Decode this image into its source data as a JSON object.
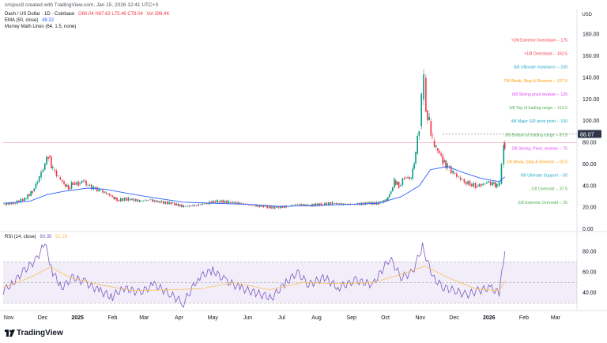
{
  "header": {
    "credit": "crispus9 created with TradingView.com, Jan 15, 2026 12:41 UTC+3"
  },
  "legend": {
    "symbol": "Dash / US Dollar · 1D · Coinbase",
    "ohlc": "O80.04  H87.62  L75.48  C78.04",
    "volume": "Vol 296.4K",
    "ema_label": "EMA (50, close)",
    "ema_value": "48.32",
    "murrey_label": "Murrey Math Lines (64, 1.5, none)",
    "rsi_label": "RSI (14, close)",
    "rsi_value": "80.35",
    "rsi_ma_value": "51.28"
  },
  "currency": "USD",
  "price_tag": "88.07",
  "footer": {
    "brand": "TradingView"
  },
  "colors": {
    "candle_up": "#089981",
    "candle_down": "#f23645",
    "ema": "#2962ff",
    "rsi": "#7e57c2",
    "rsi_ma": "#f7c15b",
    "rsi_band": "#7e57c2"
  },
  "chart_data": [
    {
      "type": "candlestick",
      "title": "Dash / US Dollar · 1D · Coinbase",
      "ylim": [
        0,
        190
      ],
      "y_ticks": [
        "180.00",
        "160.00",
        "140.00",
        "120.00",
        "100.00",
        "80.00",
        "60.00",
        "40.00",
        "20.00",
        "0.00"
      ],
      "x_ticks": [
        "Nov",
        "Dec",
        "2025",
        "Feb",
        "Mar",
        "Apr",
        "May",
        "Jun",
        "Jul",
        "Aug",
        "Sep",
        "Oct",
        "Nov",
        "Dec",
        "2026",
        "Feb",
        "Mar"
      ],
      "x_range": [
        "2024-10-27",
        "2026-03-20"
      ],
      "last_price": 88.07,
      "price_series_close": [
        [
          "2024-10-27",
          23
        ],
        [
          "2024-11-05",
          24
        ],
        [
          "2024-11-15",
          28
        ],
        [
          "2024-11-22",
          35
        ],
        [
          "2024-11-28",
          48
        ],
        [
          "2024-12-03",
          60
        ],
        [
          "2024-12-06",
          68
        ],
        [
          "2024-12-10",
          55
        ],
        [
          "2024-12-15",
          48
        ],
        [
          "2024-12-20",
          42
        ],
        [
          "2024-12-24",
          38
        ],
        [
          "2024-12-28",
          43
        ],
        [
          "2025-01-02",
          42
        ],
        [
          "2025-01-06",
          45
        ],
        [
          "2025-01-10",
          40
        ],
        [
          "2025-01-15",
          38
        ],
        [
          "2025-01-20",
          36
        ],
        [
          "2025-01-25",
          34
        ],
        [
          "2025-02-01",
          30
        ],
        [
          "2025-02-05",
          27
        ],
        [
          "2025-02-15",
          28
        ],
        [
          "2025-02-25",
          26
        ],
        [
          "2025-03-05",
          27
        ],
        [
          "2025-03-15",
          25
        ],
        [
          "2025-03-25",
          24
        ],
        [
          "2025-04-05",
          21
        ],
        [
          "2025-04-15",
          22
        ],
        [
          "2025-04-25",
          24
        ],
        [
          "2025-05-05",
          26
        ],
        [
          "2025-05-15",
          25
        ],
        [
          "2025-05-25",
          24
        ],
        [
          "2025-06-05",
          22
        ],
        [
          "2025-06-15",
          21
        ],
        [
          "2025-06-25",
          20
        ],
        [
          "2025-07-05",
          21
        ],
        [
          "2025-07-15",
          23
        ],
        [
          "2025-07-25",
          22
        ],
        [
          "2025-08-05",
          23
        ],
        [
          "2025-08-15",
          24
        ],
        [
          "2025-08-25",
          23
        ],
        [
          "2025-09-05",
          23
        ],
        [
          "2025-09-15",
          24
        ],
        [
          "2025-09-25",
          24
        ],
        [
          "2025-10-02",
          27
        ],
        [
          "2025-10-06",
          35
        ],
        [
          "2025-10-09",
          45
        ],
        [
          "2025-10-13",
          40
        ],
        [
          "2025-10-18",
          48
        ],
        [
          "2025-10-24",
          47
        ],
        [
          "2025-10-28",
          70
        ],
        [
          "2025-10-31",
          95
        ],
        [
          "2025-11-02",
          120
        ],
        [
          "2025-11-04",
          140
        ],
        [
          "2025-11-06",
          110
        ],
        [
          "2025-11-09",
          100
        ],
        [
          "2025-11-12",
          82
        ],
        [
          "2025-11-15",
          75
        ],
        [
          "2025-11-18",
          70
        ],
        [
          "2025-11-21",
          62
        ],
        [
          "2025-11-25",
          58
        ],
        [
          "2025-11-30",
          52
        ],
        [
          "2025-12-05",
          48
        ],
        [
          "2025-12-10",
          44
        ],
        [
          "2025-12-15",
          42
        ],
        [
          "2025-12-20",
          40
        ],
        [
          "2025-12-25",
          41
        ],
        [
          "2025-12-30",
          43
        ],
        [
          "2026-01-04",
          42
        ],
        [
          "2026-01-08",
          40
        ],
        [
          "2026-01-10",
          42
        ],
        [
          "2026-01-12",
          60
        ],
        [
          "2026-01-14",
          80
        ],
        [
          "2026-01-15",
          78.04
        ]
      ],
      "series": [
        {
          "name": "EMA (50, close)",
          "values": [
            [
              "2024-10-27",
              24
            ],
            [
              "2024-11-20",
              26
            ],
            [
              "2024-12-05",
              32
            ],
            [
              "2024-12-20",
              35
            ],
            [
              "2025-01-10",
              38
            ],
            [
              "2025-01-25",
              37
            ],
            [
              "2025-02-15",
              33
            ],
            [
              "2025-03-10",
              29
            ],
            [
              "2025-04-05",
              25
            ],
            [
              "2025-05-01",
              24
            ],
            [
              "2025-06-01",
              23
            ],
            [
              "2025-07-01",
              21
            ],
            [
              "2025-08-01",
              22
            ],
            [
              "2025-09-01",
              23
            ],
            [
              "2025-09-25",
              24
            ],
            [
              "2025-10-15",
              30
            ],
            [
              "2025-10-31",
              40
            ],
            [
              "2025-11-10",
              55
            ],
            [
              "2025-11-25",
              58
            ],
            [
              "2025-12-10",
              52
            ],
            [
              "2025-12-25",
              47
            ],
            [
              "2026-01-10",
              44
            ],
            [
              "2026-01-15",
              48.32
            ]
          ]
        }
      ],
      "murrey_levels": [
        {
          "label": "+2/8 Extreme Overshoot -- 175",
          "value": 175,
          "color": "#f23645"
        },
        {
          "label": "+1/8 Overshoot -- 162.5",
          "value": 162.5,
          "color": "#f23645"
        },
        {
          "label": "8/8 Ultimate resistance -- 150",
          "value": 150,
          "color": "#22a7c9"
        },
        {
          "label": "7/8 Weak, Stop & Reverse -- 137.5",
          "value": 137.5,
          "color": "#ff9800"
        },
        {
          "label": "6/8 Strong pivot reverse -- 125",
          "value": 125,
          "color": "#e040fb"
        },
        {
          "label": "5/8 Top of trading range -- 112.5",
          "value": 112.5,
          "color": "#4caf50"
        },
        {
          "label": "4/8 Major S/R pivot point -- 100",
          "value": 100,
          "color": "#22a7c9"
        },
        {
          "label": "3/8 Bottom of trading range -- 87.5",
          "value": 87.5,
          "color": "#4caf50"
        },
        {
          "label": "2/8 Strong, Pivot, reverse -- 75",
          "value": 75,
          "color": "#e040fb"
        },
        {
          "label": "1/8 Weak, Stop & Reverse -- 62.5",
          "value": 62.5,
          "color": "#ff9800"
        },
        {
          "label": "0/8 Ultimate Support -- 50",
          "value": 50,
          "color": "#22a7c9"
        },
        {
          "label": "-1/8 Oversold -- 37.5",
          "value": 37.5,
          "color": "#4caf50"
        },
        {
          "label": "-2/8 Extreme Oversold -- 25",
          "value": 25,
          "color": "#4caf50"
        }
      ]
    },
    {
      "type": "line",
      "title": "RSI (14, close)",
      "ylim": [
        25,
        95
      ],
      "y_ticks": [
        "80.00",
        "60.00",
        "40.00"
      ],
      "bands": [
        30,
        50,
        70
      ],
      "series": [
        {
          "name": "RSI",
          "values": [
            [
              "2024-10-27",
              42
            ],
            [
              "2024-11-05",
              50
            ],
            [
              "2024-11-15",
              62
            ],
            [
              "2024-11-25",
              72
            ],
            [
              "2024-12-03",
              88
            ],
            [
              "2024-12-10",
              60
            ],
            [
              "2024-12-18",
              45
            ],
            [
              "2024-12-28",
              55
            ],
            [
              "2025-01-08",
              50
            ],
            [
              "2025-01-20",
              42
            ],
            [
              "2025-02-01",
              36
            ],
            [
              "2025-02-10",
              45
            ],
            [
              "2025-02-25",
              40
            ],
            [
              "2025-03-10",
              48
            ],
            [
              "2025-03-25",
              38
            ],
            [
              "2025-04-05",
              30
            ],
            [
              "2025-04-18",
              55
            ],
            [
              "2025-05-01",
              62
            ],
            [
              "2025-05-12",
              52
            ],
            [
              "2025-05-25",
              45
            ],
            [
              "2025-06-08",
              40
            ],
            [
              "2025-06-22",
              35
            ],
            [
              "2025-07-05",
              50
            ],
            [
              "2025-07-15",
              60
            ],
            [
              "2025-07-25",
              48
            ],
            [
              "2025-08-08",
              55
            ],
            [
              "2025-08-20",
              45
            ],
            [
              "2025-09-05",
              52
            ],
            [
              "2025-09-20",
              48
            ],
            [
              "2025-10-05",
              74
            ],
            [
              "2025-10-15",
              55
            ],
            [
              "2025-10-25",
              60
            ],
            [
              "2025-11-03",
              85
            ],
            [
              "2025-11-12",
              55
            ],
            [
              "2025-11-22",
              45
            ],
            [
              "2025-12-02",
              42
            ],
            [
              "2025-12-12",
              38
            ],
            [
              "2025-12-22",
              42
            ],
            [
              "2026-01-02",
              45
            ],
            [
              "2026-01-10",
              40
            ],
            [
              "2026-01-15",
              80.35
            ]
          ]
        },
        {
          "name": "RSI MA",
          "values": [
            [
              "2024-10-27",
              45
            ],
            [
              "2024-11-20",
              55
            ],
            [
              "2024-12-08",
              65
            ],
            [
              "2024-12-25",
              55
            ],
            [
              "2025-01-20",
              48
            ],
            [
              "2025-02-20",
              42
            ],
            [
              "2025-03-25",
              43
            ],
            [
              "2025-04-20",
              44
            ],
            [
              "2025-05-20",
              50
            ],
            [
              "2025-06-20",
              43
            ],
            [
              "2025-07-20",
              50
            ],
            [
              "2025-08-20",
              49
            ],
            [
              "2025-09-20",
              50
            ],
            [
              "2025-10-15",
              58
            ],
            [
              "2025-11-05",
              66
            ],
            [
              "2025-11-25",
              55
            ],
            [
              "2025-12-20",
              44
            ],
            [
              "2026-01-10",
              42
            ],
            [
              "2026-01-15",
              51.28
            ]
          ]
        }
      ]
    }
  ]
}
